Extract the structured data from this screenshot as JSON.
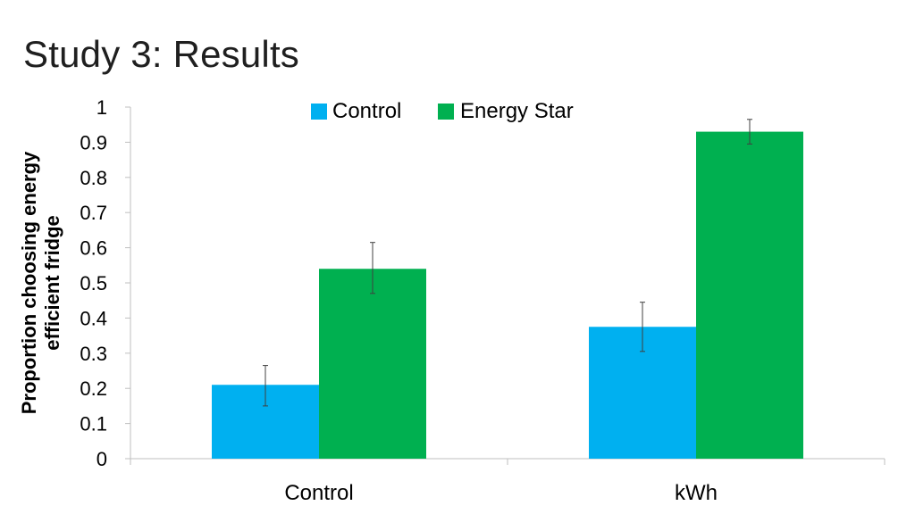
{
  "slide": {
    "title": "Study 3: Results"
  },
  "chart_data": {
    "type": "bar",
    "categories": [
      "Control",
      "kWh"
    ],
    "series": [
      {
        "name": "Control",
        "color": "#00B0F0",
        "values": [
          0.21,
          0.375
        ],
        "error_low": [
          0.15,
          0.305
        ],
        "error_high": [
          0.265,
          0.445
        ]
      },
      {
        "name": "Energy Star",
        "color": "#00B050",
        "values": [
          0.54,
          0.93
        ],
        "error_low": [
          0.47,
          0.895
        ],
        "error_high": [
          0.615,
          0.965
        ]
      }
    ],
    "ylabel_lines": [
      "Proportion choosing energy",
      "efficient fridge"
    ],
    "xlabel": "",
    "ylim": [
      0,
      1
    ],
    "yticks": [
      "0",
      "0.1",
      "0.2",
      "0.3",
      "0.4",
      "0.5",
      "0.6",
      "0.7",
      "0.8",
      "0.9",
      "1"
    ],
    "grid": false,
    "legend_position": "top-center",
    "error_bars": true
  }
}
